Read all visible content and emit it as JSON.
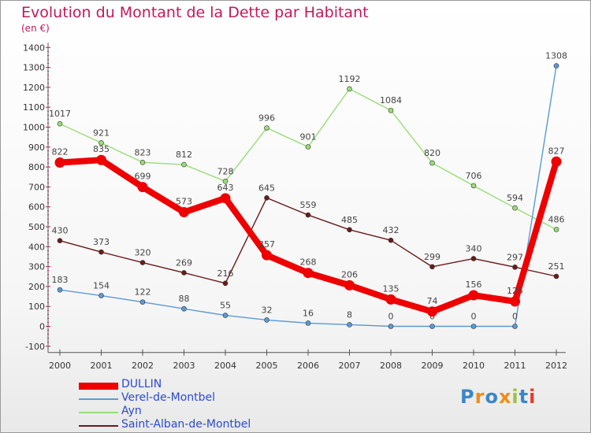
{
  "header": {
    "title": "Evolution du Montant de la Dette par Habitant",
    "subtitle": "(en €)"
  },
  "logo": {
    "text": "Proxiti",
    "letter_colors": [
      "#3a86c8",
      "#f08c1a",
      "#3a86c8",
      "#f08c1a",
      "#9bc23a",
      "#3a86c8",
      "#e43a2a"
    ]
  },
  "chart_data": {
    "type": "line",
    "title": "Evolution du Montant de la Dette par Habitant",
    "subtitle": "(en €)",
    "xlabel": "",
    "ylabel": "",
    "categories": [
      "2000",
      "2001",
      "2002",
      "2003",
      "2004",
      "2005",
      "2006",
      "2007",
      "2008",
      "2009",
      "2010",
      "2011",
      "2012"
    ],
    "ylim": [
      -100,
      1400
    ],
    "yticks": [
      -100,
      0,
      100,
      200,
      300,
      400,
      500,
      600,
      700,
      800,
      900,
      1000,
      1100,
      1200,
      1300,
      1400
    ],
    "grid": false,
    "legend_position": "bottom-left",
    "series": [
      {
        "name": "Ayn",
        "color": "#99dd77",
        "values": [
          1017,
          921,
          823,
          812,
          728,
          996,
          901,
          1192,
          1084,
          820,
          706,
          594,
          486
        ]
      },
      {
        "name": "Saint-Alban-de-Montbel",
        "color": "#6b1a1a",
        "values": [
          430,
          373,
          320,
          269,
          216,
          645,
          559,
          485,
          432,
          299,
          340,
          297,
          251
        ]
      },
      {
        "name": "Verel-de-Montbel",
        "color": "#5a9bd5",
        "values": [
          183,
          154,
          122,
          88,
          55,
          32,
          16,
          8,
          0,
          0,
          0,
          0,
          1308
        ]
      },
      {
        "name": "DULLIN",
        "color": "#ee0000",
        "values": [
          822,
          835,
          699,
          573,
          643,
          357,
          268,
          206,
          135,
          74,
          156,
          125,
          827
        ]
      }
    ],
    "legend_order": [
      "DULLIN",
      "Verel-de-Montbel",
      "Ayn",
      "Saint-Alban-de-Montbel"
    ]
  }
}
